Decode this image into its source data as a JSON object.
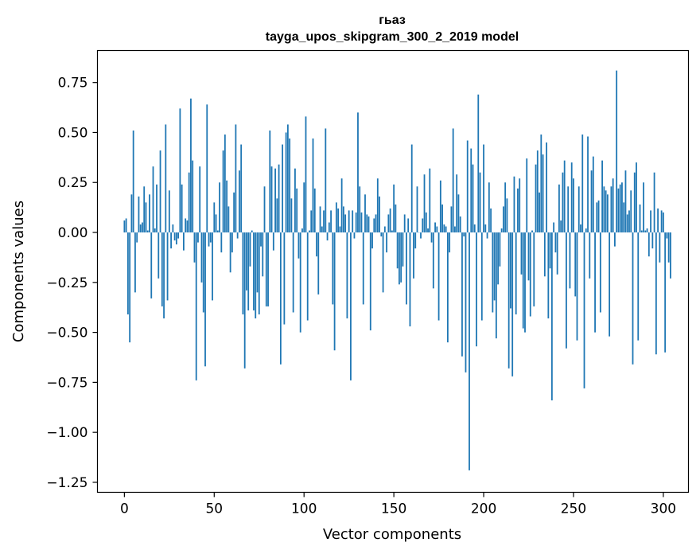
{
  "chart_data": {
    "type": "bar",
    "title_line1": "гьаз",
    "title_line2": "tayga_upos_skipgram_300_2_2019 model",
    "xlabel": "Vector components",
    "ylabel": "Components values",
    "xlim": [
      -15,
      314
    ],
    "ylim": [
      -1.3,
      0.91
    ],
    "x_ticks": [
      0,
      50,
      100,
      150,
      200,
      250,
      300
    ],
    "x_tick_labels": [
      "0",
      "50",
      "100",
      "150",
      "200",
      "250",
      "300"
    ],
    "y_ticks": [
      0.75,
      0.5,
      0.25,
      0.0,
      -0.25,
      -0.5,
      -0.75,
      -1.0,
      -1.25
    ],
    "y_tick_labels": [
      "0.75",
      "0.50",
      "0.25",
      "0.00",
      "−0.25",
      "−0.50",
      "−0.75",
      "−1.00",
      "−1.25"
    ],
    "bar_color": "#1f77b4",
    "grid": false,
    "values": [
      0.06,
      0.07,
      -0.41,
      -0.55,
      0.19,
      0.51,
      -0.3,
      -0.05,
      0.18,
      0.04,
      0.05,
      0.23,
      0.15,
      0.01,
      0.19,
      -0.33,
      0.33,
      0.02,
      0.24,
      -0.23,
      0.41,
      -0.37,
      -0.43,
      0.54,
      -0.34,
      0.21,
      -0.08,
      0.04,
      -0.04,
      -0.06,
      -0.03,
      0.62,
      0.24,
      -0.09,
      0.07,
      0.06,
      0.3,
      0.67,
      0.36,
      -0.15,
      -0.74,
      -0.05,
      0.33,
      -0.25,
      -0.4,
      -0.67,
      0.64,
      -0.07,
      -0.05,
      -0.34,
      0.15,
      0.09,
      0.01,
      0.25,
      -0.1,
      0.41,
      0.49,
      0.26,
      0.13,
      -0.2,
      -0.1,
      0.2,
      0.54,
      -0.03,
      0.31,
      0.44,
      -0.41,
      -0.68,
      -0.29,
      -0.39,
      -0.17,
      0.01,
      -0.39,
      -0.43,
      -0.3,
      -0.41,
      -0.07,
      -0.22,
      0.23,
      -0.37,
      -0.37,
      0.51,
      0.33,
      -0.09,
      0.32,
      0.17,
      0.34,
      -0.66,
      0.44,
      -0.46,
      0.5,
      0.54,
      0.47,
      0.17,
      -0.4,
      0.32,
      0.22,
      -0.13,
      -0.5,
      0.02,
      0.25,
      0.58,
      -0.44,
      0.01,
      0.11,
      0.47,
      0.22,
      -0.12,
      -0.31,
      0.13,
      0.03,
      0.11,
      0.52,
      -0.04,
      0.05,
      0.11,
      -0.36,
      -0.59,
      0.15,
      0.12,
      0.03,
      0.27,
      0.13,
      0.09,
      -0.43,
      0.11,
      -0.74,
      0.11,
      -0.03,
      0.1,
      0.6,
      0.23,
      0.1,
      -0.36,
      0.19,
      0.09,
      0.08,
      -0.49,
      -0.08,
      0.07,
      0.09,
      0.27,
      0.18,
      -0.02,
      -0.3,
      0.03,
      -0.1,
      0.09,
      0.12,
      0.01,
      0.24,
      0.14,
      -0.18,
      -0.26,
      -0.25,
      -0.17,
      0.09,
      -0.36,
      0.07,
      -0.47,
      0.44,
      -0.23,
      -0.08,
      0.23,
      0.0,
      -0.03,
      0.07,
      0.29,
      0.1,
      0.02,
      0.32,
      -0.05,
      -0.28,
      0.05,
      0.03,
      -0.44,
      0.26,
      0.14,
      0.04,
      0.03,
      -0.55,
      -0.1,
      0.13,
      0.52,
      0.03,
      0.29,
      0.19,
      0.08,
      -0.62,
      -0.02,
      -0.7,
      0.46,
      -1.19,
      0.42,
      0.34,
      0.04,
      -0.57,
      0.69,
      0.3,
      -0.44,
      0.44,
      0.04,
      -0.03,
      0.25,
      0.12,
      -0.4,
      -0.34,
      -0.53,
      -0.26,
      -0.17,
      0.02,
      0.13,
      0.25,
      0.17,
      -0.68,
      -0.38,
      -0.72,
      0.28,
      -0.41,
      0.22,
      0.27,
      -0.21,
      -0.48,
      -0.5,
      0.37,
      -0.24,
      -0.42,
      0.01,
      -0.37,
      0.34,
      0.41,
      0.2,
      0.49,
      0.39,
      -0.22,
      0.45,
      -0.43,
      -0.18,
      -0.84,
      0.05,
      -0.1,
      -0.21,
      0.24,
      0.06,
      0.3,
      0.36,
      -0.58,
      0.23,
      -0.28,
      0.35,
      0.27,
      -0.32,
      -0.54,
      0.23,
      0.04,
      0.49,
      -0.78,
      0.02,
      0.48,
      -0.23,
      0.31,
      0.38,
      -0.5,
      0.15,
      0.16,
      -0.4,
      0.36,
      0.23,
      0.21,
      0.19,
      -0.52,
      0.23,
      0.27,
      -0.07,
      0.81,
      0.22,
      0.24,
      0.25,
      0.15,
      0.31,
      0.09,
      0.11,
      0.21,
      -0.66,
      0.3,
      0.35,
      -0.54,
      0.14,
      0.01,
      0.25,
      0.01,
      0.02,
      -0.12,
      0.11,
      -0.08,
      0.3,
      -0.61,
      0.12,
      -0.15,
      0.11,
      0.1,
      -0.6,
      -0.03,
      -0.15,
      -0.23
    ]
  }
}
